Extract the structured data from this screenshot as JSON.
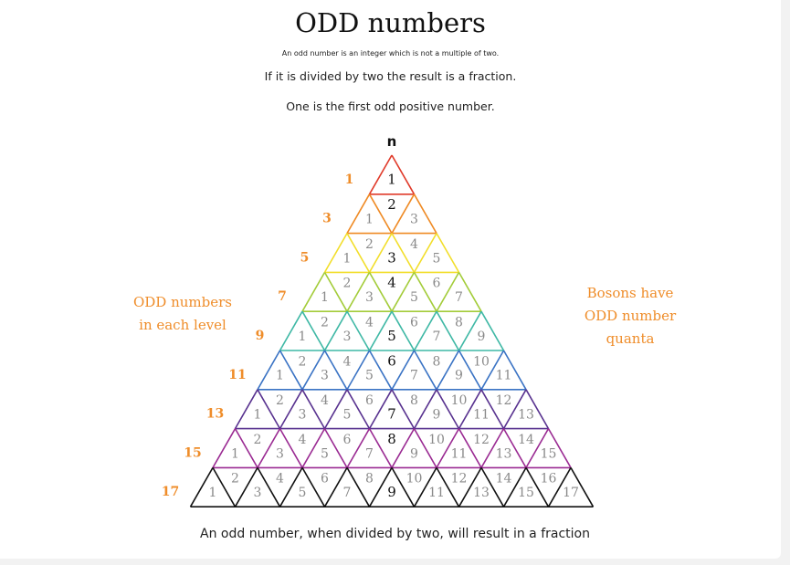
{
  "header": {
    "title": "ODD numbers",
    "subtitle_small": "An odd number is an integer which is not a multiple of two.",
    "line1": "If it is divided by two the result is a fraction.",
    "line2": "One is the first odd positive number."
  },
  "left_note": [
    "ODD numbers",
    "in each level"
  ],
  "right_note": [
    "Bosons have",
    "ODD number",
    "quanta"
  ],
  "apex_label": "n",
  "row_labels": [
    "1",
    "3",
    "5",
    "7",
    "9",
    "11",
    "13",
    "15",
    "17"
  ],
  "row_colors": [
    "#e03a2a",
    "#ef8a24",
    "#f2de2a",
    "#a3cc39",
    "#3fb8a5",
    "#3a73c4",
    "#58328f",
    "#9a2a92",
    "#111111"
  ],
  "row_numbers": [
    [
      "1"
    ],
    [
      "1",
      "2",
      "3"
    ],
    [
      "1",
      "2",
      "3",
      "4",
      "5"
    ],
    [
      "1",
      "2",
      "3",
      "4",
      "5",
      "6",
      "7"
    ],
    [
      "1",
      "2",
      "3",
      "4",
      "5",
      "6",
      "7",
      "8",
      "9"
    ],
    [
      "1",
      "2",
      "3",
      "4",
      "5",
      "6",
      "7",
      "8",
      "9",
      "10",
      "11"
    ],
    [
      "1",
      "2",
      "3",
      "4",
      "5",
      "6",
      "7",
      "8",
      "9",
      "10",
      "11",
      "12",
      "13"
    ],
    [
      "1",
      "2",
      "3",
      "4",
      "5",
      "6",
      "7",
      "8",
      "9",
      "10",
      "11",
      "12",
      "13",
      "14",
      "15"
    ],
    [
      "1",
      "2",
      "3",
      "4",
      "5",
      "6",
      "7",
      "8",
      "9",
      "10",
      "11",
      "12",
      "13",
      "14",
      "15",
      "16",
      "17"
    ]
  ],
  "label_color": "#ef8d2a",
  "number_color": "#8a8a8a",
  "highlight_color": "#111111",
  "footer": "An odd number, when divided by two, will result in a fraction"
}
